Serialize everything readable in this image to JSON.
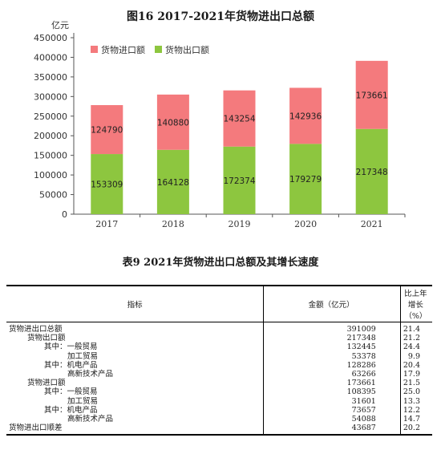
{
  "figure_title": "图16   2017-2021年货物进出口总额",
  "chart_data": {
    "type": "bar",
    "stacked": true,
    "title": "图16   2017-2021年货物进出口总额",
    "unit_label": "亿元",
    "categories": [
      "2017",
      "2018",
      "2019",
      "2020",
      "2021"
    ],
    "series": [
      {
        "name": "货物出口额",
        "values": [
          153309,
          164128,
          172374,
          179279,
          217348
        ],
        "color": "#8dc63f"
      },
      {
        "name": "货物进口额",
        "values": [
          124790,
          140880,
          143254,
          142936,
          173661
        ],
        "color": "#f47a7d"
      }
    ],
    "legend_order": [
      "货物进口额",
      "货物出口额"
    ],
    "ylim": [
      0,
      450000
    ],
    "yticks": [
      0,
      50000,
      100000,
      150000,
      200000,
      250000,
      300000,
      350000,
      400000,
      450000
    ],
    "grid": false,
    "legend_position": "top-left"
  },
  "table": {
    "title": "表9   2021年货物进出口总额及其增长速度",
    "headers": [
      "指标",
      "金额（亿元）",
      "比上年增长（%）"
    ],
    "rows": [
      {
        "label": "货物进出口总额",
        "amount": "391009",
        "growth": "21.4",
        "indent": 0
      },
      {
        "label": "货物出口额",
        "amount": "217348",
        "growth": "21.2",
        "indent": 1
      },
      {
        "label": "其中：一般贸易",
        "amount": "132445",
        "growth": "24.4",
        "indent": 2
      },
      {
        "label": "加工贸易",
        "amount": "53378",
        "growth": "9.9",
        "indent": 3
      },
      {
        "label": "其中：机电产品",
        "amount": "128286",
        "growth": "20.4",
        "indent": 2
      },
      {
        "label": "高新技术产品",
        "amount": "63266",
        "growth": "17.9",
        "indent": 3
      },
      {
        "label": "货物进口额",
        "amount": "173661",
        "growth": "21.5",
        "indent": 1
      },
      {
        "label": "其中：一般贸易",
        "amount": "108395",
        "growth": "25.0",
        "indent": 2
      },
      {
        "label": "加工贸易",
        "amount": "31601",
        "growth": "13.3",
        "indent": 3
      },
      {
        "label": "其中：机电产品",
        "amount": "73657",
        "growth": "12.2",
        "indent": 2
      },
      {
        "label": "高新技术产品",
        "amount": "54088",
        "growth": "14.7",
        "indent": 3
      },
      {
        "label": "货物进出口顺差",
        "amount": "43687",
        "growth": "20.2",
        "indent": 0
      }
    ]
  }
}
